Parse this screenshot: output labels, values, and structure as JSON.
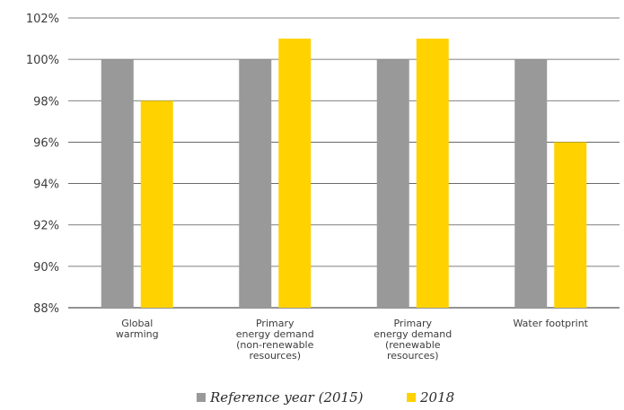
{
  "chart_data": {
    "type": "bar",
    "categories": [
      [
        "Global",
        "warming"
      ],
      [
        "Primary",
        "energy demand",
        "(non-renewable",
        "resources)"
      ],
      [
        "Primary",
        "energy demand",
        "(renewable",
        "resources)"
      ],
      [
        "Water footprint"
      ]
    ],
    "series": [
      {
        "name": "Reference year (2015)",
        "color": "#999999",
        "values": [
          100,
          100,
          100,
          100
        ]
      },
      {
        "name": "2018",
        "color": "#ffd200",
        "values": [
          98,
          101,
          101,
          96
        ]
      }
    ],
    "ylim": [
      88,
      102
    ],
    "yticks": [
      88,
      90,
      92,
      94,
      96,
      98,
      100,
      102
    ],
    "ytick_suffix": "%",
    "grid": "horizontal",
    "legend_position": "bottom"
  }
}
